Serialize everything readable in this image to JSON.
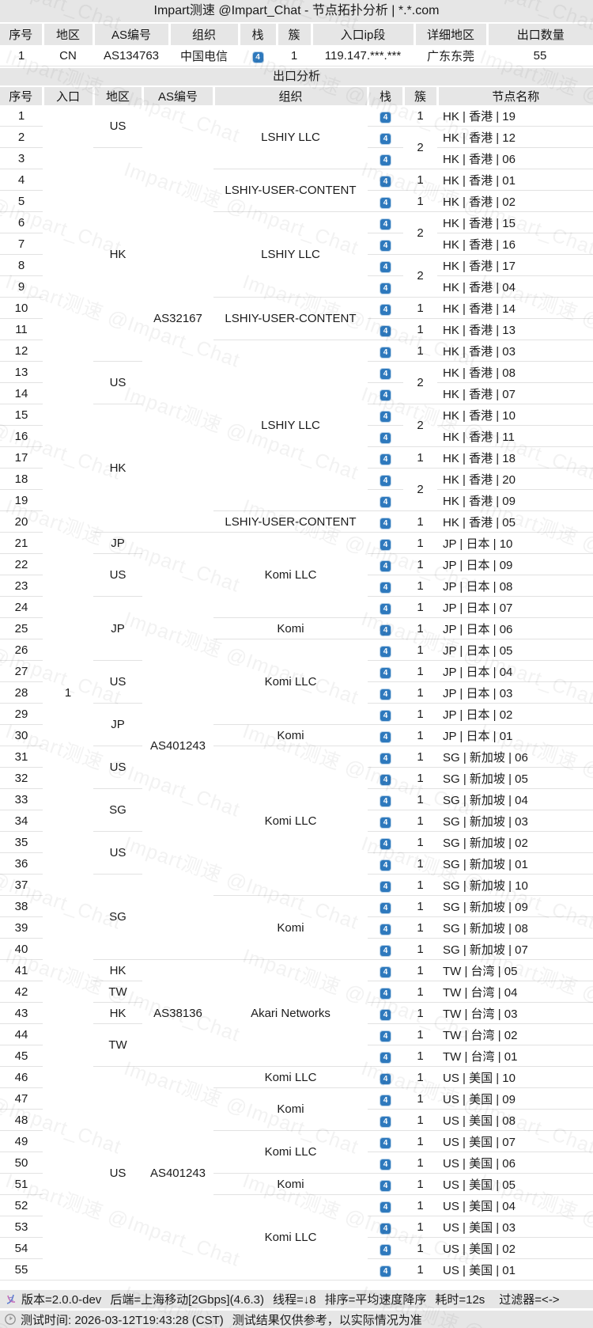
{
  "title": "Impart测速 @Impart_Chat - 节点拓扑分析 | *.*.com",
  "watermark": {
    "text": "Impart测速 @Impart_Chat"
  },
  "colors": {
    "badge_blue": "#2e79bd",
    "header_bg": "#e6e6e6",
    "row_border": "#e2e2e2"
  },
  "stack_badge": "4",
  "entry_table": {
    "headers": [
      "序号",
      "地区",
      "AS编号",
      "组织",
      "栈",
      "簇",
      "入口ip段",
      "详细地区",
      "出口数量"
    ],
    "row": {
      "index": "1",
      "region": "CN",
      "asn": "AS134763",
      "org": "中国电信",
      "stack": "4",
      "cluster": "1",
      "ip_range": "119.147.***.***",
      "detail_region": "广东东莞",
      "exit_count": "55"
    }
  },
  "section_title": "出口分析",
  "exit_table": {
    "headers": [
      "序号",
      "入口",
      "地区",
      "AS编号",
      "组织",
      "栈",
      "簇",
      "节点名称"
    ],
    "entry": {
      "value": "1"
    },
    "region_groups": [
      [
        1,
        2,
        "US"
      ],
      [
        3,
        12,
        "HK"
      ],
      [
        13,
        14,
        "US"
      ],
      [
        15,
        20,
        "HK"
      ],
      [
        21,
        21,
        "JP"
      ],
      [
        22,
        23,
        "US"
      ],
      [
        24,
        26,
        "JP"
      ],
      [
        27,
        28,
        "US"
      ],
      [
        29,
        30,
        "JP"
      ],
      [
        31,
        32,
        "US"
      ],
      [
        33,
        34,
        "SG"
      ],
      [
        35,
        36,
        "US"
      ],
      [
        37,
        40,
        "SG"
      ],
      [
        41,
        41,
        "HK"
      ],
      [
        42,
        42,
        "TW"
      ],
      [
        43,
        43,
        "HK"
      ],
      [
        44,
        45,
        "TW"
      ],
      [
        46,
        55,
        "US"
      ]
    ],
    "asn_groups": [
      [
        1,
        20,
        "AS32167"
      ],
      [
        21,
        40,
        "AS401243"
      ],
      [
        41,
        45,
        "AS38136"
      ],
      [
        46,
        55,
        "AS401243"
      ]
    ],
    "org_groups": [
      [
        1,
        3,
        "LSHIY LLC"
      ],
      [
        4,
        5,
        "LSHIY-USER-CONTENT"
      ],
      [
        6,
        9,
        "LSHIY LLC"
      ],
      [
        10,
        11,
        "LSHIY-USER-CONTENT"
      ],
      [
        12,
        19,
        "LSHIY LLC"
      ],
      [
        20,
        20,
        "LSHIY-USER-CONTENT"
      ],
      [
        21,
        24,
        "Komi LLC"
      ],
      [
        25,
        25,
        "Komi"
      ],
      [
        26,
        29,
        "Komi LLC"
      ],
      [
        30,
        30,
        "Komi"
      ],
      [
        31,
        37,
        "Komi LLC"
      ],
      [
        38,
        40,
        "Komi"
      ],
      [
        41,
        45,
        "Akari Networks"
      ],
      [
        46,
        46,
        "Komi LLC"
      ],
      [
        47,
        48,
        "Komi"
      ],
      [
        49,
        50,
        "Komi LLC"
      ],
      [
        51,
        51,
        "Komi"
      ],
      [
        52,
        55,
        "Komi LLC"
      ]
    ],
    "cluster_groups": [
      [
        1,
        1,
        "1"
      ],
      [
        2,
        3,
        "2"
      ],
      [
        4,
        4,
        "1"
      ],
      [
        5,
        5,
        "1"
      ],
      [
        6,
        7,
        "2"
      ],
      [
        8,
        9,
        "2"
      ],
      [
        10,
        10,
        "1"
      ],
      [
        11,
        11,
        "1"
      ],
      [
        12,
        12,
        "1"
      ],
      [
        13,
        14,
        "2"
      ],
      [
        15,
        16,
        "2"
      ],
      [
        17,
        17,
        "1"
      ],
      [
        18,
        19,
        "2"
      ],
      [
        20,
        20,
        "1"
      ],
      [
        21,
        21,
        "1"
      ],
      [
        22,
        22,
        "1"
      ],
      [
        23,
        23,
        "1"
      ],
      [
        24,
        24,
        "1"
      ],
      [
        25,
        25,
        "1"
      ],
      [
        26,
        26,
        "1"
      ],
      [
        27,
        27,
        "1"
      ],
      [
        28,
        28,
        "1"
      ],
      [
        29,
        29,
        "1"
      ],
      [
        30,
        30,
        "1"
      ],
      [
        31,
        31,
        "1"
      ],
      [
        32,
        32,
        "1"
      ],
      [
        33,
        33,
        "1"
      ],
      [
        34,
        34,
        "1"
      ],
      [
        35,
        35,
        "1"
      ],
      [
        36,
        36,
        "1"
      ],
      [
        37,
        37,
        "1"
      ],
      [
        38,
        38,
        "1"
      ],
      [
        39,
        39,
        "1"
      ],
      [
        40,
        40,
        "1"
      ],
      [
        41,
        41,
        "1"
      ],
      [
        42,
        42,
        "1"
      ],
      [
        43,
        43,
        "1"
      ],
      [
        44,
        44,
        "1"
      ],
      [
        45,
        45,
        "1"
      ],
      [
        46,
        46,
        "1"
      ],
      [
        47,
        47,
        "1"
      ],
      [
        48,
        48,
        "1"
      ],
      [
        49,
        49,
        "1"
      ],
      [
        50,
        50,
        "1"
      ],
      [
        51,
        51,
        "1"
      ],
      [
        52,
        52,
        "1"
      ],
      [
        53,
        53,
        "1"
      ],
      [
        54,
        54,
        "1"
      ],
      [
        55,
        55,
        "1"
      ]
    ],
    "rows": [
      {
        "n": "1",
        "node": "HK | 香港 | 19"
      },
      {
        "n": "2",
        "node": "HK | 香港 | 12"
      },
      {
        "n": "3",
        "node": "HK | 香港 | 06"
      },
      {
        "n": "4",
        "node": "HK | 香港 | 01"
      },
      {
        "n": "5",
        "node": "HK | 香港 | 02"
      },
      {
        "n": "6",
        "node": "HK | 香港 | 15"
      },
      {
        "n": "7",
        "node": "HK | 香港 | 16"
      },
      {
        "n": "8",
        "node": "HK | 香港 | 17"
      },
      {
        "n": "9",
        "node": "HK | 香港 | 04"
      },
      {
        "n": "10",
        "node": "HK | 香港 | 14"
      },
      {
        "n": "11",
        "node": "HK | 香港 | 13"
      },
      {
        "n": "12",
        "node": "HK | 香港 | 03"
      },
      {
        "n": "13",
        "node": "HK | 香港 | 08"
      },
      {
        "n": "14",
        "node": "HK | 香港 | 07"
      },
      {
        "n": "15",
        "node": "HK | 香港 | 10"
      },
      {
        "n": "16",
        "node": "HK | 香港 | 11"
      },
      {
        "n": "17",
        "node": "HK | 香港 | 18"
      },
      {
        "n": "18",
        "node": "HK | 香港 | 20"
      },
      {
        "n": "19",
        "node": "HK | 香港 | 09"
      },
      {
        "n": "20",
        "node": "HK | 香港 | 05"
      },
      {
        "n": "21",
        "node": "JP | 日本 | 10"
      },
      {
        "n": "22",
        "node": "JP | 日本 | 09"
      },
      {
        "n": "23",
        "node": "JP | 日本 | 08"
      },
      {
        "n": "24",
        "node": "JP | 日本 | 07"
      },
      {
        "n": "25",
        "node": "JP | 日本 | 06"
      },
      {
        "n": "26",
        "node": "JP | 日本 | 05"
      },
      {
        "n": "27",
        "node": "JP | 日本 | 04"
      },
      {
        "n": "28",
        "node": "JP | 日本 | 03"
      },
      {
        "n": "29",
        "node": "JP | 日本 | 02"
      },
      {
        "n": "30",
        "node": "JP | 日本 | 01"
      },
      {
        "n": "31",
        "node": "SG | 新加坡 | 06"
      },
      {
        "n": "32",
        "node": "SG | 新加坡 | 05"
      },
      {
        "n": "33",
        "node": "SG | 新加坡 | 04"
      },
      {
        "n": "34",
        "node": "SG | 新加坡 | 03"
      },
      {
        "n": "35",
        "node": "SG | 新加坡 | 02"
      },
      {
        "n": "36",
        "node": "SG | 新加坡 | 01"
      },
      {
        "n": "37",
        "node": "SG | 新加坡 | 10"
      },
      {
        "n": "38",
        "node": "SG | 新加坡 | 09"
      },
      {
        "n": "39",
        "node": "SG | 新加坡 | 08"
      },
      {
        "n": "40",
        "node": "SG | 新加坡 | 07"
      },
      {
        "n": "41",
        "node": "TW | 台湾 | 05"
      },
      {
        "n": "42",
        "node": "TW | 台湾 | 04"
      },
      {
        "n": "43",
        "node": "TW | 台湾 | 03"
      },
      {
        "n": "44",
        "node": "TW | 台湾 | 02"
      },
      {
        "n": "45",
        "node": "TW | 台湾 | 01"
      },
      {
        "n": "46",
        "node": "US | 美国 | 10"
      },
      {
        "n": "47",
        "node": "US | 美国 | 09"
      },
      {
        "n": "48",
        "node": "US | 美国 | 08"
      },
      {
        "n": "49",
        "node": "US | 美国 | 07"
      },
      {
        "n": "50",
        "node": "US | 美国 | 06"
      },
      {
        "n": "51",
        "node": "US | 美国 | 05"
      },
      {
        "n": "52",
        "node": "US | 美国 | 04"
      },
      {
        "n": "53",
        "node": "US | 美国 | 03"
      },
      {
        "n": "54",
        "node": "US | 美国 | 02"
      },
      {
        "n": "55",
        "node": "US | 美国 | 01"
      }
    ]
  },
  "footer": {
    "status_items": [
      "版本=2.0.0-dev",
      "后端=上海移动[2Gbps](4.6.3)",
      "线程=↓8",
      "排序=平均速度降序",
      "耗时=12s",
      "过滤器=<->"
    ],
    "time_items": [
      "测试时间: 2026-03-12T19:43:28 (CST)",
      "测试结果仅供参考，以实际情况为准"
    ]
  }
}
